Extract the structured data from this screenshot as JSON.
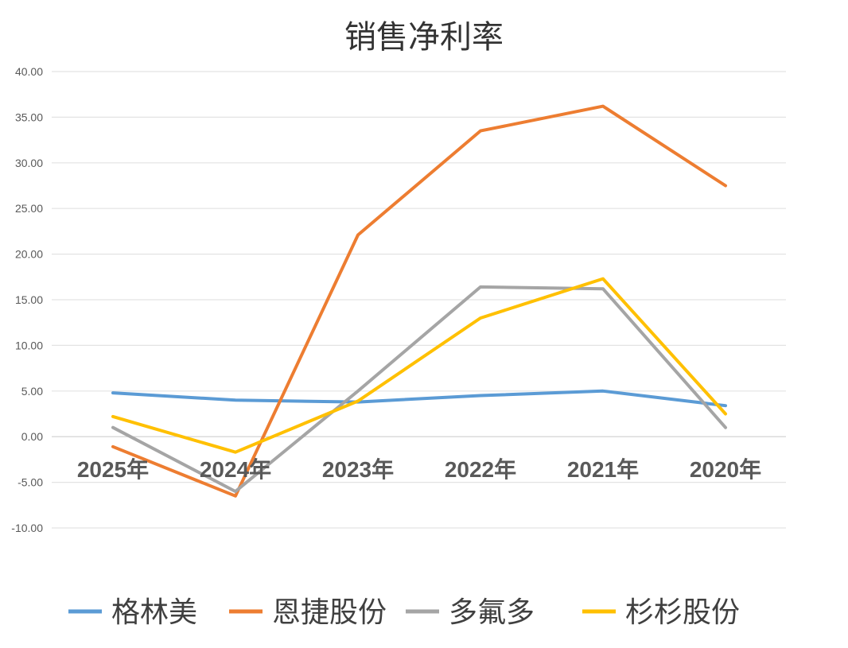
{
  "chart_data": {
    "type": "line",
    "title": "销售净利率",
    "categories": [
      "2025年",
      "2024年",
      "2023年",
      "2022年",
      "2021年",
      "2020年"
    ],
    "ylim": [
      -10,
      40
    ],
    "yticks": [
      "40.00",
      "35.00",
      "30.00",
      "25.00",
      "20.00",
      "15.00",
      "10.00",
      "5.00",
      "0.00",
      "-5.00",
      "-10.00"
    ],
    "grid": true,
    "legend": "bottom",
    "series": [
      {
        "name": "格林美",
        "color": "#5B9BD5",
        "values": [
          4.8,
          4.0,
          3.8,
          4.5,
          5.0,
          3.4
        ]
      },
      {
        "name": "恩捷股份",
        "color": "#ED7D31",
        "values": [
          -1.1,
          -6.5,
          22.1,
          33.5,
          36.2,
          27.5
        ]
      },
      {
        "name": "多氟多",
        "color": "#A5A5A5",
        "values": [
          1.0,
          -6.0,
          5.0,
          16.4,
          16.2,
          1.0
        ]
      },
      {
        "name": "杉杉股份",
        "color": "#FFC000",
        "values": [
          2.2,
          -1.7,
          3.9,
          13.0,
          17.3,
          2.5
        ]
      }
    ]
  }
}
